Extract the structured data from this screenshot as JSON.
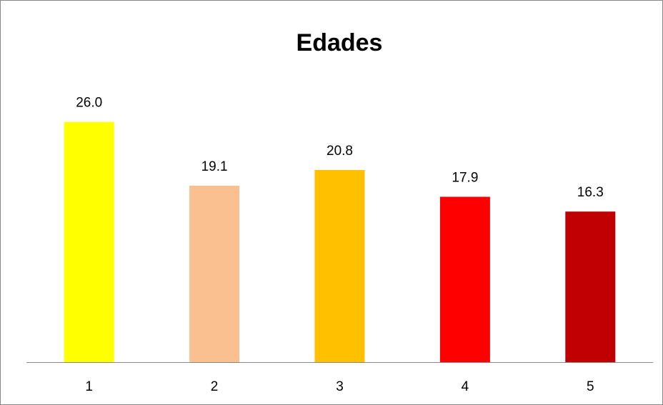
{
  "chart_data": {
    "type": "bar",
    "title": "Edades",
    "categories": [
      "1",
      "2",
      "3",
      "4",
      "5"
    ],
    "values": [
      26,
      19.1,
      20.8,
      17.9,
      16.3
    ],
    "value_labels": [
      "26.0",
      "19.1",
      "20.8",
      "17.9",
      "16.3"
    ],
    "colors": [
      "#ffff00",
      "#fac090",
      "#ffc000",
      "#ff0000",
      "#c00000"
    ],
    "ylim": [
      0,
      30
    ]
  }
}
